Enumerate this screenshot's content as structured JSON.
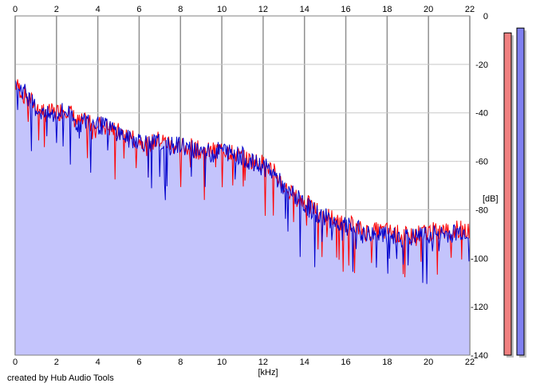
{
  "chart_data": {
    "type": "line",
    "title": "",
    "xlabel": "[kHz]",
    "ylabel": "[dB]",
    "xlim": [
      0,
      22
    ],
    "ylim": [
      -140,
      0
    ],
    "x_ticks": [
      0,
      2,
      4,
      6,
      8,
      10,
      12,
      14,
      16,
      18,
      20,
      22
    ],
    "x_tick_labels": [
      "0",
      "2",
      "4",
      "6",
      "8",
      "10",
      "12",
      "14",
      "16",
      "18",
      "20",
      "22"
    ],
    "y_ticks": [
      0,
      -20,
      -40,
      -60,
      -80,
      -100,
      -120,
      -140
    ],
    "y_tick_labels": [
      "0",
      "-20",
      "-40",
      "-60",
      "-80",
      "-100",
      "-120",
      "-140"
    ],
    "grid": true,
    "series": [
      {
        "color": "#ff0000",
        "x": [
          0,
          0.5,
          1,
          1.5,
          2,
          2.5,
          3,
          3.5,
          4,
          4.5,
          5,
          5.5,
          6,
          6.5,
          7,
          7.5,
          8,
          8.5,
          9,
          9.5,
          10,
          10.5,
          11,
          11.5,
          12,
          12.5,
          13,
          13.5,
          14,
          14.5,
          15,
          15.5,
          16,
          16.5,
          17,
          17.5,
          18,
          18.5,
          19,
          19.5,
          20,
          20.5,
          21,
          21.5,
          22
        ],
        "y": [
          -28,
          -33,
          -37,
          -40,
          -40,
          -38,
          -44,
          -44,
          -44,
          -46,
          -48,
          -50,
          -51,
          -53,
          -51,
          -53,
          -54,
          -54,
          -56,
          -56,
          -55,
          -56,
          -59,
          -60,
          -61,
          -64,
          -70,
          -75,
          -77,
          -80,
          -82,
          -84,
          -85,
          -88,
          -89,
          -89,
          -89,
          -90,
          -91,
          -90,
          -89,
          -89,
          -89,
          -88,
          -88
        ]
      },
      {
        "color": "#0000cc",
        "x": [
          0,
          0.5,
          1,
          1.5,
          2,
          2.5,
          3,
          3.5,
          4,
          4.5,
          5,
          5.5,
          6,
          6.5,
          7,
          7.5,
          8,
          8.5,
          9,
          9.5,
          10,
          10.5,
          11,
          11.5,
          12,
          12.5,
          13,
          13.5,
          14,
          14.5,
          15,
          15.5,
          16,
          16.5,
          17,
          17.5,
          18,
          18.5,
          19,
          19.5,
          20,
          20.5,
          21,
          21.5,
          22
        ],
        "y": [
          -27,
          -32,
          -38,
          -41,
          -41,
          -39,
          -45,
          -43,
          -45,
          -46,
          -48,
          -51,
          -51,
          -53,
          -52,
          -54,
          -53,
          -55,
          -55,
          -57,
          -55,
          -57,
          -58,
          -61,
          -62,
          -65,
          -71,
          -74,
          -78,
          -81,
          -83,
          -85,
          -87,
          -88,
          -90,
          -90,
          -91,
          -91,
          -92,
          -91,
          -90,
          -90,
          -90,
          -89,
          -89
        ]
      }
    ],
    "fill_color": "#c4c4fc",
    "level_meters": [
      {
        "color": "#f08080",
        "value_db": -7
      },
      {
        "color": "#8080f0",
        "value_db": -5
      }
    ]
  },
  "credit": "created by Hub Audio Tools"
}
